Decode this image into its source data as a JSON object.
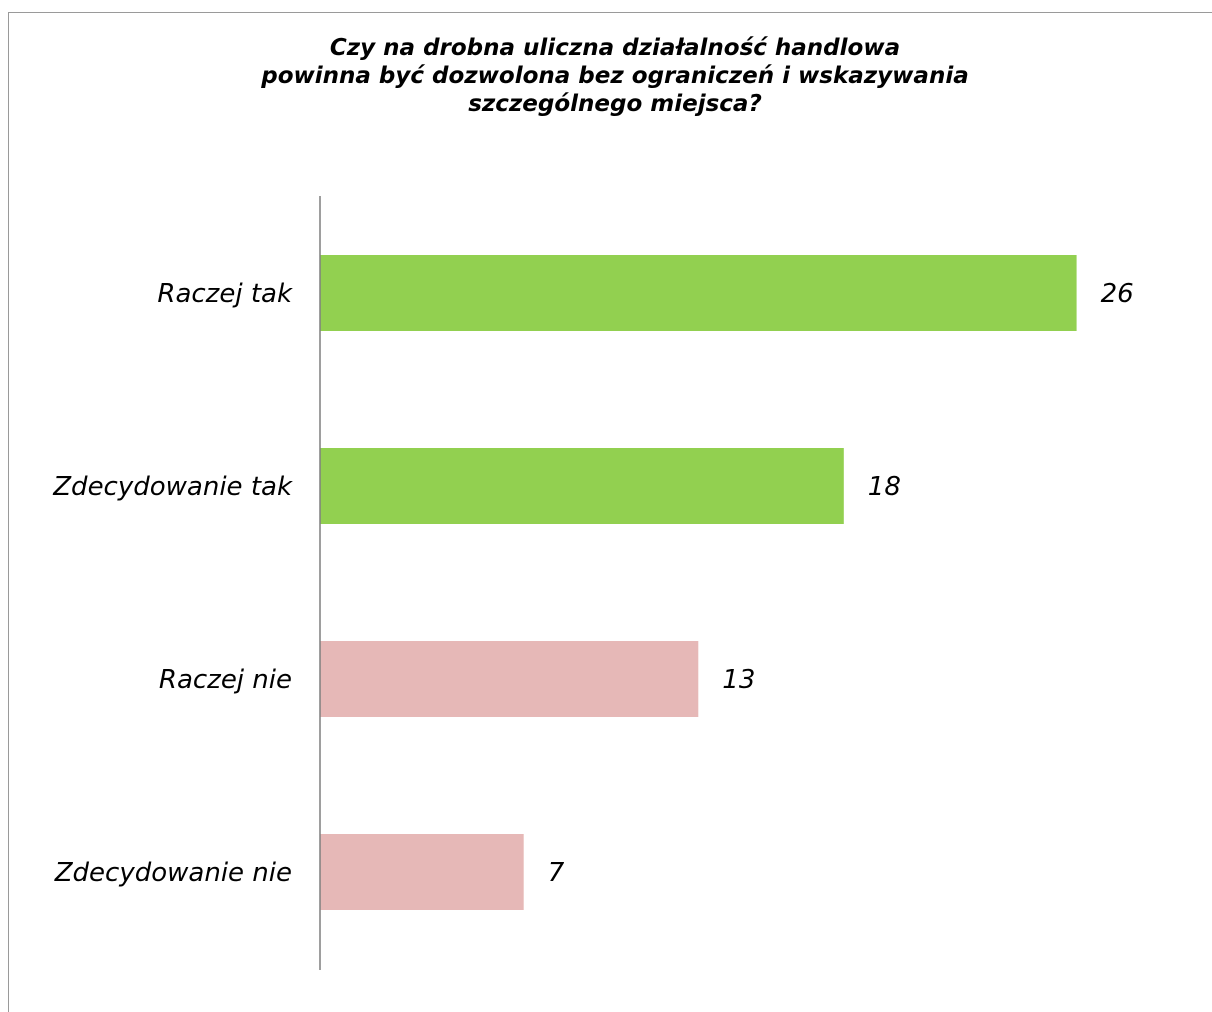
{
  "chart_data": {
    "type": "bar",
    "orientation": "horizontal",
    "title": "Czy na drobna uliczna działalność handlowa powinna być dozwolona bez ograniczeń i wskazywania szczególnego miejsca?",
    "title_lines": [
      "Czy na drobna uliczna działalność handlowa",
      "powinna być dozwolona bez ograniczeń i wskazywania",
      "szczególnego miejsca?"
    ],
    "categories": [
      "Raczej tak",
      "Zdecydowanie tak",
      "Raczej nie",
      "Zdecydowanie nie"
    ],
    "values": [
      26,
      18,
      13,
      7
    ],
    "colors": [
      "#92d050",
      "#92d050",
      "#e6b8b7",
      "#e6b8b7"
    ],
    "axis_color": "#7f7f7f",
    "xlim": [
      0,
      28
    ],
    "grid": false,
    "legend": "none",
    "data_labels": true
  }
}
